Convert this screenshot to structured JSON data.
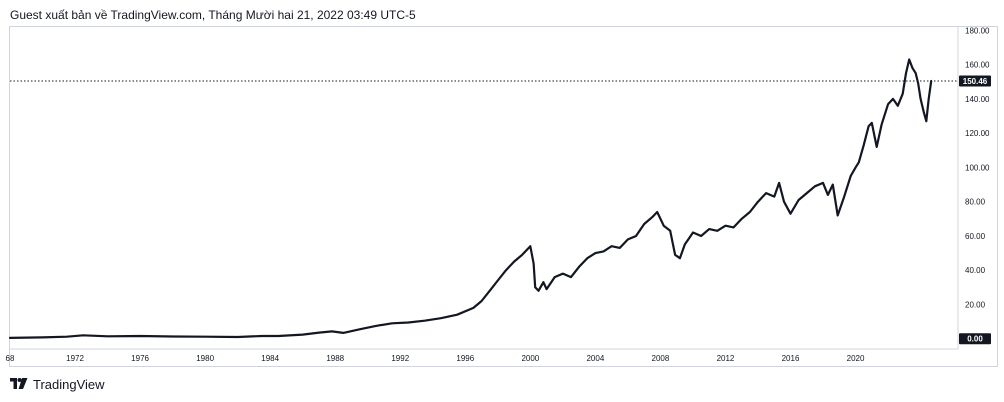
{
  "header": {
    "text": "Guest xuất bản về TradingView.com, Tháng Mười hai 21, 2022 03:49 UTC-5"
  },
  "brand": {
    "logo_icon": "tradingview-logo-icon",
    "name": "TradingView"
  },
  "colors": {
    "line": "#131722",
    "label_bg": "#131722",
    "label_text": "#ffffff",
    "border": "#d1d4dc"
  },
  "chart_data": {
    "type": "line",
    "title": "",
    "xlabel": "",
    "ylabel": "",
    "grid": false,
    "legend": "none",
    "xlim": [
      1968.0,
      2026.3
    ],
    "ylim": [
      -6,
      182
    ],
    "x_ticks": [
      "68",
      "1972",
      "1976",
      "1980",
      "1984",
      "1988",
      "1992",
      "1996",
      "2000",
      "2004",
      "2008",
      "2012",
      "2016",
      "2020"
    ],
    "y_ticks": [
      "180.00",
      "160.00",
      "140.00",
      "120.00",
      "100.00",
      "80.00",
      "60.00",
      "40.00",
      "20.00"
    ],
    "last_price": {
      "value": 150.46,
      "label": "150.46"
    },
    "zero_price": {
      "value": 0,
      "label": "0.00"
    },
    "series": [
      {
        "values": [
          [
            1968.0,
            0.5
          ],
          [
            1970.0,
            0.8
          ],
          [
            1971.5,
            1.2
          ],
          [
            1972.5,
            2.0
          ],
          [
            1974.0,
            1.4
          ],
          [
            1976.0,
            1.6
          ],
          [
            1978.0,
            1.3
          ],
          [
            1980.0,
            1.2
          ],
          [
            1982.0,
            1.0
          ],
          [
            1983.5,
            1.6
          ],
          [
            1984.5,
            1.6
          ],
          [
            1986.0,
            2.4
          ],
          [
            1987.0,
            3.6
          ],
          [
            1987.8,
            4.3
          ],
          [
            1988.5,
            3.4
          ],
          [
            1989.5,
            5.5
          ],
          [
            1990.5,
            7.5
          ],
          [
            1991.5,
            9.0
          ],
          [
            1992.5,
            9.5
          ],
          [
            1993.5,
            10.5
          ],
          [
            1994.5,
            12.0
          ],
          [
            1995.5,
            14.0
          ],
          [
            1996.5,
            18.0
          ],
          [
            1997.0,
            22.0
          ],
          [
            1997.5,
            28.0
          ],
          [
            1998.0,
            34.0
          ],
          [
            1998.5,
            40.0
          ],
          [
            1999.0,
            45.0
          ],
          [
            1999.5,
            49.0
          ],
          [
            2000.0,
            54.0
          ],
          [
            2000.2,
            44.0
          ],
          [
            2000.3,
            30.0
          ],
          [
            2000.5,
            28.0
          ],
          [
            2000.8,
            33.0
          ],
          [
            2001.0,
            29.0
          ],
          [
            2001.5,
            36.0
          ],
          [
            2002.0,
            38.0
          ],
          [
            2002.5,
            36.0
          ],
          [
            2003.0,
            42.0
          ],
          [
            2003.5,
            47.0
          ],
          [
            2004.0,
            50.0
          ],
          [
            2004.5,
            51.0
          ],
          [
            2005.0,
            54.0
          ],
          [
            2005.5,
            53.0
          ],
          [
            2006.0,
            58.0
          ],
          [
            2006.5,
            60.0
          ],
          [
            2007.0,
            67.0
          ],
          [
            2007.5,
            71.0
          ],
          [
            2007.8,
            74.0
          ],
          [
            2008.2,
            66.0
          ],
          [
            2008.6,
            63.0
          ],
          [
            2008.9,
            49.0
          ],
          [
            2009.2,
            47.0
          ],
          [
            2009.5,
            55.0
          ],
          [
            2010.0,
            62.0
          ],
          [
            2010.5,
            60.0
          ],
          [
            2011.0,
            64.0
          ],
          [
            2011.5,
            63.0
          ],
          [
            2012.0,
            66.0
          ],
          [
            2012.5,
            65.0
          ],
          [
            2013.0,
            70.0
          ],
          [
            2013.5,
            74.0
          ],
          [
            2014.0,
            80.0
          ],
          [
            2014.5,
            85.0
          ],
          [
            2015.0,
            83.0
          ],
          [
            2015.3,
            91.0
          ],
          [
            2015.6,
            80.0
          ],
          [
            2016.0,
            73.0
          ],
          [
            2016.5,
            81.0
          ],
          [
            2017.0,
            85.0
          ],
          [
            2017.5,
            89.0
          ],
          [
            2018.0,
            91.0
          ],
          [
            2018.3,
            84.0
          ],
          [
            2018.6,
            90.0
          ],
          [
            2018.9,
            72.0
          ],
          [
            2019.3,
            83.0
          ],
          [
            2019.7,
            95.0
          ],
          [
            2020.0,
            100.0
          ],
          [
            2020.2,
            103.0
          ],
          [
            2020.5,
            113.0
          ],
          [
            2020.8,
            124.0
          ],
          [
            2021.0,
            126.0
          ],
          [
            2021.3,
            112.0
          ],
          [
            2021.6,
            125.0
          ],
          [
            2022.0,
            137.0
          ],
          [
            2022.3,
            140.0
          ],
          [
            2022.6,
            136.0
          ],
          [
            2022.9,
            143.0
          ],
          [
            2023.1,
            155.0
          ],
          [
            2023.3,
            163.0
          ],
          [
            2023.5,
            158.0
          ],
          [
            2023.7,
            155.0
          ],
          [
            2023.85,
            149.0
          ],
          [
            2024.0,
            140.0
          ],
          [
            2024.2,
            132.0
          ],
          [
            2024.35,
            127.0
          ],
          [
            2024.5,
            140.0
          ],
          [
            2024.65,
            150.46
          ]
        ]
      }
    ]
  }
}
